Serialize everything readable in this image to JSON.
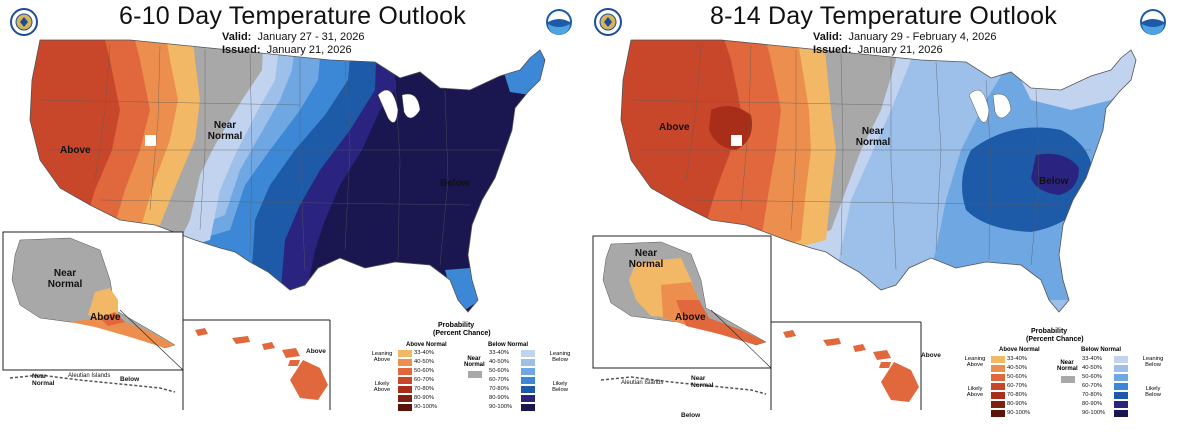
{
  "panels": [
    {
      "title": "6-10 Day Temperature Outlook",
      "valid_label": "Valid:",
      "valid_value": "January 27 - 31, 2026",
      "issued_label": "Issued:",
      "issued_value": "January 21, 2026",
      "map_labels": {
        "above": "Above",
        "near_normal": "Near Normal",
        "below": "Below",
        "alaska_near_normal": "Near Normal",
        "alaska_above": "Above",
        "aleutian_near_normal": "Near Normal",
        "aleutian_islands": "Aleutian Islands",
        "aleutian_below": "Below",
        "hawaii_above": "Above"
      }
    },
    {
      "title": "8-14 Day Temperature Outlook",
      "valid_label": "Valid:",
      "valid_value": "January 29 - February 4, 2026",
      "issued_label": "Issued:",
      "issued_value": "January 21, 2026",
      "map_labels": {
        "above": "Above",
        "near_normal": "Near Normal",
        "below": "Below",
        "alaska_near_normal": "Near Normal",
        "alaska_above": "Above",
        "aleutian_islands": "Aleutian Islands",
        "aleutian_near_normal": "Near Normal",
        "aleutian_below": "Below",
        "hawaii_above": "Above"
      }
    }
  ],
  "legend": {
    "title": "Probability",
    "subtitle": "(Percent Chance)",
    "above_header": "Above Normal",
    "near_header": "Near Normal",
    "below_header": "Below Normal",
    "leaning_above": "Leaning Above",
    "likely_above": "Likely Above",
    "leaning_below": "Leaning Below",
    "likely_below": "Likely Below",
    "ranges": [
      "33-40%",
      "40-50%",
      "50-60%",
      "60-70%",
      "70-80%",
      "80-90%",
      "90-100%"
    ],
    "above_colors": [
      "#f2b865",
      "#ec8f4e",
      "#e0683c",
      "#c8472a",
      "#a82e1a",
      "#802010",
      "#5a1408"
    ],
    "near_color": "#a8a8a8",
    "below_colors": [
      "#c1d3ee",
      "#9cc0ea",
      "#6fa7e3",
      "#3c88d6",
      "#1d5aa8",
      "#2a2480",
      "#1a1650"
    ]
  },
  "logos": {
    "left_logo": "doc-seal-icon",
    "right_logo": "noaa-logo-icon"
  }
}
